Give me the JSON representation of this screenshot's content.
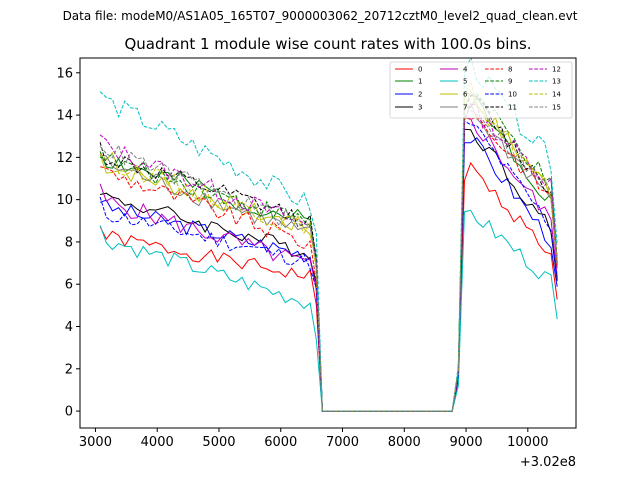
{
  "figure": {
    "suptitle": "Data file: modeM0/AS1A05_165T07_9000003062_20712cztM0_level2_quad_clean.evt"
  },
  "chart_data": {
    "type": "line",
    "title": "Quadrant 1 module wise count rates with 100.0s bins.",
    "xlabel": "",
    "ylabel": "",
    "x_offset_label": "+3.02e8",
    "xlim": [
      2750,
      10780
    ],
    "ylim": [
      -0.8,
      16.7
    ],
    "xticks": [
      3000,
      4000,
      5000,
      6000,
      7000,
      8000,
      9000,
      10000
    ],
    "xtick_labels": [
      "3000",
      "4000",
      "5000",
      "6000",
      "7000",
      "8000",
      "9000",
      "10000"
    ],
    "yticks": [
      0,
      2,
      4,
      6,
      8,
      10,
      12,
      14,
      16
    ],
    "ytick_labels": [
      "0",
      "2",
      "4",
      "6",
      "8",
      "10",
      "12",
      "14",
      "16"
    ],
    "grid": false,
    "legend_position": "top-right",
    "x_segments": {
      "seg1": {
        "start": 3075,
        "step": 100,
        "count": 36
      },
      "gap": {
        "start": 6675,
        "step": 100,
        "count": 22
      },
      "seg2": {
        "start": 8875,
        "step": 100,
        "count": 17
      }
    },
    "series": [
      {
        "name": "0",
        "color": "#ff0000",
        "dash": "solid",
        "seg1_mean": 7.3,
        "seg1_slope": -1.0,
        "seg2_mean": 9.6,
        "seg2_slope": -2.5,
        "amp": 0.35,
        "seed": 1
      },
      {
        "name": "1",
        "color": "#008000",
        "dash": "solid",
        "seg1_mean": 10.4,
        "seg1_slope": -1.6,
        "seg2_mean": 12.6,
        "seg2_slope": -3.0,
        "amp": 0.5,
        "seed": 2
      },
      {
        "name": "2",
        "color": "#0000ff",
        "dash": "solid",
        "seg1_mean": 8.5,
        "seg1_slope": -1.2,
        "seg2_mean": 10.7,
        "seg2_slope": -3.0,
        "amp": 0.4,
        "seed": 3
      },
      {
        "name": "3",
        "color": "#000000",
        "dash": "solid",
        "seg1_mean": 8.8,
        "seg1_slope": -1.4,
        "seg2_mean": 11.2,
        "seg2_slope": -3.0,
        "amp": 0.4,
        "seed": 4
      },
      {
        "name": "4",
        "color": "#bf00bf",
        "dash": "solid",
        "seg1_mean": 8.4,
        "seg1_slope": -1.6,
        "seg2_mean": 11.6,
        "seg2_slope": -3.0,
        "amp": 0.45,
        "seed": 5
      },
      {
        "name": "5",
        "color": "#00bfbf",
        "dash": "solid",
        "seg1_mean": 6.6,
        "seg1_slope": -1.6,
        "seg2_mean": 7.9,
        "seg2_slope": -2.0,
        "amp": 0.4,
        "seed": 6
      },
      {
        "name": "6",
        "color": "#bfbf00",
        "dash": "solid",
        "seg1_mean": 10.1,
        "seg1_slope": -1.6,
        "seg2_mean": 12.8,
        "seg2_slope": -2.8,
        "amp": 0.45,
        "seed": 7
      },
      {
        "name": "7",
        "color": "#808080",
        "dash": "solid",
        "seg1_mean": 10.0,
        "seg1_slope": -1.8,
        "seg2_mean": 12.3,
        "seg2_slope": -2.5,
        "amp": 0.45,
        "seed": 8
      },
      {
        "name": "8",
        "color": "#ff0000",
        "dash": "dashed",
        "seg1_mean": 9.6,
        "seg1_slope": -1.8,
        "seg2_mean": 12.3,
        "seg2_slope": -2.5,
        "amp": 0.45,
        "seed": 9
      },
      {
        "name": "9",
        "color": "#008000",
        "dash": "dashed",
        "seg1_mean": 10.4,
        "seg1_slope": -1.6,
        "seg2_mean": 13.1,
        "seg2_slope": -2.8,
        "amp": 0.45,
        "seed": 10
      },
      {
        "name": "10",
        "color": "#0000ff",
        "dash": "dashed",
        "seg1_mean": 8.2,
        "seg1_slope": -1.2,
        "seg2_mean": 11.4,
        "seg2_slope": -3.0,
        "amp": 0.4,
        "seed": 11
      },
      {
        "name": "11",
        "color": "#000000",
        "dash": "dashed",
        "seg1_mean": 10.5,
        "seg1_slope": -1.6,
        "seg2_mean": 12.8,
        "seg2_slope": -2.8,
        "amp": 0.45,
        "seed": 12
      },
      {
        "name": "12",
        "color": "#bf00bf",
        "dash": "dashed",
        "seg1_mean": 10.6,
        "seg1_slope": -2.0,
        "seg2_mean": 12.7,
        "seg2_slope": -2.2,
        "amp": 0.45,
        "seed": 13
      },
      {
        "name": "13",
        "color": "#00bfbf",
        "dash": "dashed",
        "seg1_mean": 12.2,
        "seg1_slope": -2.6,
        "seg2_mean": 14.3,
        "seg2_slope": -2.8,
        "amp": 0.5,
        "seed": 14
      },
      {
        "name": "14",
        "color": "#bfbf00",
        "dash": "dashed",
        "seg1_mean": 10.2,
        "seg1_slope": -1.8,
        "seg2_mean": 12.9,
        "seg2_slope": -3.0,
        "amp": 0.45,
        "seed": 15
      },
      {
        "name": "15",
        "color": "#808080",
        "dash": "dashed",
        "seg1_mean": 10.5,
        "seg1_slope": -2.0,
        "seg2_mean": 12.6,
        "seg2_slope": -2.6,
        "amp": 0.45,
        "seed": 16
      }
    ]
  }
}
